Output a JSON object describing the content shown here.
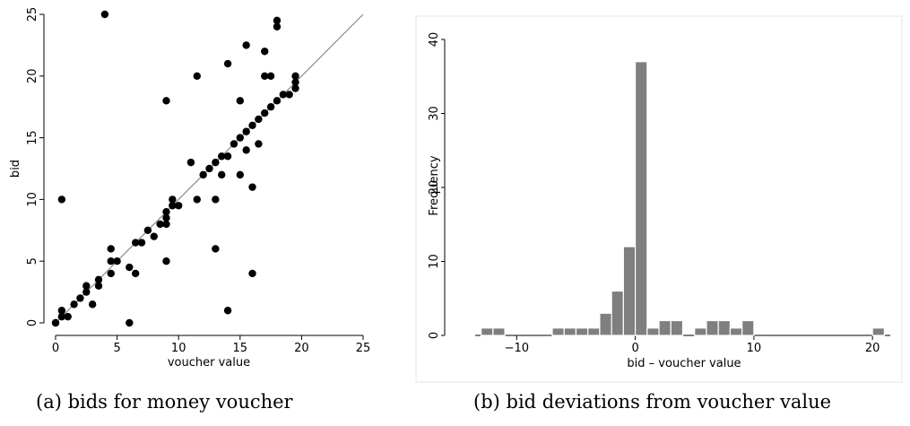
{
  "chart_data": [
    {
      "type": "scatter",
      "title": "",
      "xlabel": "voucher value",
      "ylabel": "bid",
      "xlim": [
        0,
        25
      ],
      "ylim": [
        0,
        25
      ],
      "xticks": [
        0,
        5,
        10,
        15,
        20,
        25
      ],
      "yticks": [
        0,
        5,
        10,
        15,
        20,
        25
      ],
      "reference_line": {
        "from": [
          0,
          0
        ],
        "to": [
          25,
          25
        ],
        "color": "#888888"
      },
      "points": [
        [
          0,
          0
        ],
        [
          0,
          0
        ],
        [
          0.5,
          0.5
        ],
        [
          0.5,
          1
        ],
        [
          0.5,
          10
        ],
        [
          1,
          0.5
        ],
        [
          1.5,
          1.5
        ],
        [
          2,
          2
        ],
        [
          2.5,
          2.5
        ],
        [
          2.5,
          3
        ],
        [
          3,
          1.5
        ],
        [
          3.5,
          3
        ],
        [
          3.5,
          3.5
        ],
        [
          4,
          25
        ],
        [
          4.5,
          4
        ],
        [
          4.5,
          5
        ],
        [
          4.5,
          6
        ],
        [
          5,
          5
        ],
        [
          6,
          4.5
        ],
        [
          6,
          0
        ],
        [
          6.5,
          4
        ],
        [
          6.5,
          6.5
        ],
        [
          7,
          6.5
        ],
        [
          7.5,
          7.5
        ],
        [
          8,
          7
        ],
        [
          8.5,
          8
        ],
        [
          9,
          8
        ],
        [
          9,
          8.5
        ],
        [
          9,
          9
        ],
        [
          9,
          5
        ],
        [
          9,
          18
        ],
        [
          9.5,
          9.5
        ],
        [
          9.5,
          10
        ],
        [
          10,
          9.5
        ],
        [
          11,
          13
        ],
        [
          11.5,
          10
        ],
        [
          11.5,
          20
        ],
        [
          12,
          12
        ],
        [
          12.5,
          12.5
        ],
        [
          13,
          13
        ],
        [
          13,
          10
        ],
        [
          13,
          6
        ],
        [
          13.5,
          13.5
        ],
        [
          13.5,
          12
        ],
        [
          14,
          13.5
        ],
        [
          14,
          21
        ],
        [
          14,
          1
        ],
        [
          14.5,
          14.5
        ],
        [
          15,
          15
        ],
        [
          15,
          12
        ],
        [
          15,
          18
        ],
        [
          15.5,
          15.5
        ],
        [
          15.5,
          14
        ],
        [
          15.5,
          22.5
        ],
        [
          16,
          16
        ],
        [
          16,
          11
        ],
        [
          16,
          4
        ],
        [
          16.5,
          16.5
        ],
        [
          16.5,
          14.5
        ],
        [
          17,
          17
        ],
        [
          17,
          20
        ],
        [
          17,
          22
        ],
        [
          17.5,
          17.5
        ],
        [
          17.5,
          20
        ],
        [
          18,
          18
        ],
        [
          18,
          24
        ],
        [
          18,
          24.5
        ],
        [
          18.5,
          18.5
        ],
        [
          19,
          18.5
        ],
        [
          19.5,
          19
        ],
        [
          19.5,
          19.5
        ],
        [
          19.5,
          20
        ]
      ]
    },
    {
      "type": "bar",
      "title": "",
      "xlabel": "bid – voucher value",
      "ylabel": "Frequency",
      "xlim": [
        -13.5,
        21.5
      ],
      "ylim": [
        0,
        40
      ],
      "xticks": [
        -10,
        0,
        10,
        20
      ],
      "yticks": [
        0,
        10,
        20,
        30,
        40
      ],
      "tick_labels_x": [
        "−10",
        "0",
        "10",
        "20"
      ],
      "bin_width": 1,
      "bars_color": "#7f7f7f",
      "bins": [
        {
          "center": -12.5,
          "count": 1
        },
        {
          "center": -11.5,
          "count": 1
        },
        {
          "center": -6.5,
          "count": 1
        },
        {
          "center": -5.5,
          "count": 1
        },
        {
          "center": -4.5,
          "count": 1
        },
        {
          "center": -3.5,
          "count": 1
        },
        {
          "center": -2.5,
          "count": 3
        },
        {
          "center": -1.5,
          "count": 6
        },
        {
          "center": -0.5,
          "count": 12
        },
        {
          "center": 0.5,
          "count": 37
        },
        {
          "center": 1.5,
          "count": 1
        },
        {
          "center": 2.5,
          "count": 2
        },
        {
          "center": 3.5,
          "count": 2
        },
        {
          "center": 5.5,
          "count": 1
        },
        {
          "center": 6.5,
          "count": 2
        },
        {
          "center": 7.5,
          "count": 2
        },
        {
          "center": 8.5,
          "count": 1
        },
        {
          "center": 9.5,
          "count": 2
        },
        {
          "center": 20.5,
          "count": 1
        }
      ]
    }
  ],
  "captions": {
    "a": "(a) bids for money voucher",
    "b": "(b) bid deviations from voucher value"
  }
}
